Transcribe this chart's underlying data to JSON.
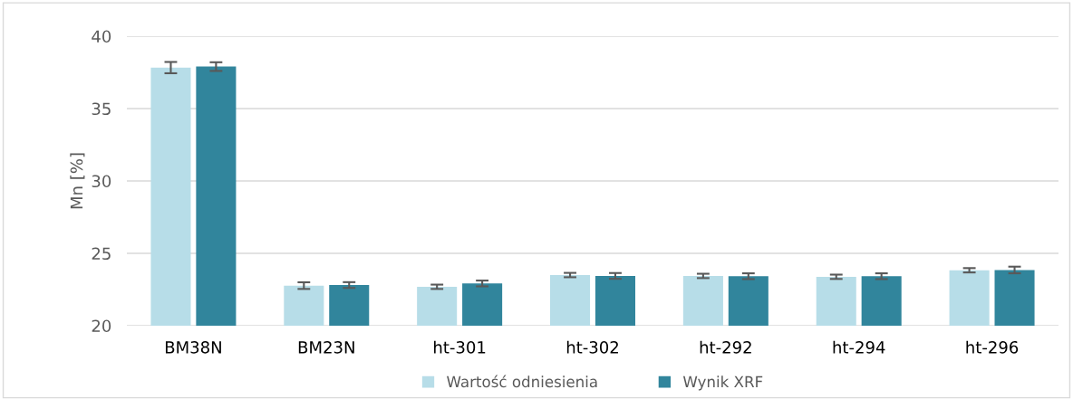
{
  "chart_data": {
    "type": "bar",
    "ylabel": "Mn [%]",
    "categories": [
      "BM38N",
      "BM23N",
      "ht-301",
      "ht-302",
      "ht-292",
      "ht-294",
      "ht-296"
    ],
    "series": [
      {
        "name": "Wartość odniesienia",
        "color": "#b7dde8",
        "values": [
          37.83,
          22.77,
          22.69,
          23.5,
          23.44,
          23.38,
          23.83
        ],
        "errors": [
          0.39,
          0.23,
          0.15,
          0.15,
          0.15,
          0.15,
          0.15
        ]
      },
      {
        "name": "Wynik XRF",
        "color": "#31859c",
        "values": [
          37.9,
          22.81,
          22.92,
          23.44,
          23.42,
          23.42,
          23.85
        ],
        "errors": [
          0.3,
          0.2,
          0.2,
          0.2,
          0.2,
          0.2,
          0.23
        ]
      }
    ],
    "ylim": [
      20,
      40
    ],
    "yticks": [
      20,
      25,
      30,
      35,
      40
    ],
    "grid": "y",
    "legend": "bottom"
  }
}
